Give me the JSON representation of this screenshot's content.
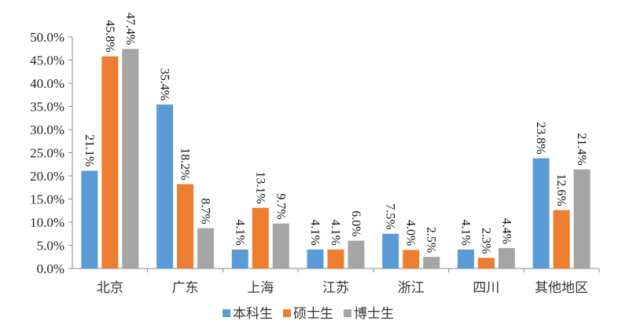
{
  "chart_data": {
    "type": "bar",
    "categories": [
      "北京",
      "广东",
      "上海",
      "江苏",
      "浙江",
      "四川",
      "其他地区"
    ],
    "series": [
      {
        "name": "本科生",
        "color": "#5B9BD5",
        "values": [
          21.1,
          35.4,
          4.1,
          4.1,
          7.5,
          4.1,
          23.8
        ]
      },
      {
        "name": "硕士生",
        "color": "#ED7D31",
        "values": [
          45.8,
          18.2,
          13.1,
          4.1,
          4.0,
          2.3,
          12.6
        ]
      },
      {
        "name": "博士生",
        "color": "#A5A5A5",
        "values": [
          47.4,
          8.7,
          9.7,
          6.0,
          2.5,
          4.4,
          21.4
        ]
      }
    ],
    "yticks": [
      "0.0%",
      "5.0%",
      "10.0%",
      "15.0%",
      "20.0%",
      "25.0%",
      "30.0%",
      "35.0%",
      "40.0%",
      "45.0%",
      "50.0%"
    ],
    "ylim": [
      0,
      50
    ],
    "grid": false,
    "legend": "bottom",
    "data_labels": "rotated-vertical",
    "title": "",
    "xlabel": "",
    "ylabel": ""
  }
}
